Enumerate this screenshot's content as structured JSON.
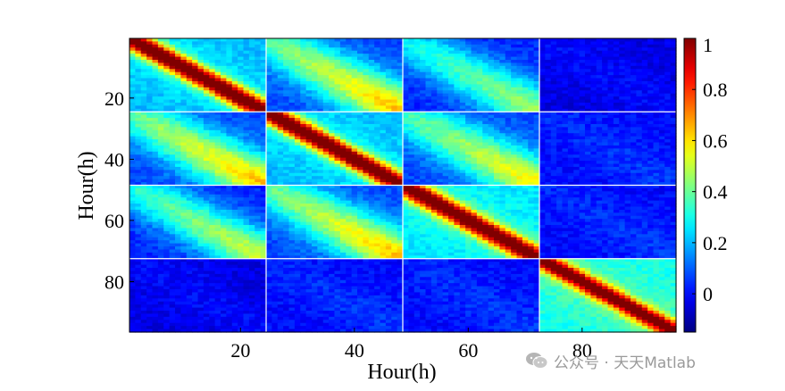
{
  "chart_data": {
    "type": "heatmap",
    "title": "",
    "xlabel": "Hour(h)",
    "ylabel": "Hour(h)",
    "x_range": [
      1,
      96
    ],
    "y_range": [
      1,
      96
    ],
    "x_ticks": [
      20,
      40,
      60,
      80
    ],
    "y_ticks": [
      20,
      40,
      60,
      80
    ],
    "block_size_hours": 24,
    "colormap": "jet",
    "colorbar": {
      "min": -0.15,
      "max": 1.0,
      "ticks": [
        0,
        0.2,
        0.4,
        0.6,
        0.8,
        1
      ],
      "tick_labels": [
        "0",
        "0.2",
        "0.4",
        "0.6",
        "0.8",
        "1"
      ]
    },
    "block_values": [
      {
        "row_block": 1,
        "col_block": 1,
        "diagonal": 1.0,
        "off_diagonal_peak": 0.2
      },
      {
        "row_block": 1,
        "col_block": 2,
        "diagonal": 0.55,
        "off_diagonal_peak": 0.1
      },
      {
        "row_block": 1,
        "col_block": 3,
        "diagonal": 0.4,
        "off_diagonal_peak": 0.05
      },
      {
        "row_block": 1,
        "col_block": 4,
        "diagonal": 0.0,
        "off_diagonal_peak": -0.05
      },
      {
        "row_block": 2,
        "col_block": 1,
        "diagonal": 0.55,
        "off_diagonal_peak": 0.1
      },
      {
        "row_block": 2,
        "col_block": 2,
        "diagonal": 1.0,
        "off_diagonal_peak": 0.2
      },
      {
        "row_block": 2,
        "col_block": 3,
        "diagonal": 0.5,
        "off_diagonal_peak": 0.1
      },
      {
        "row_block": 2,
        "col_block": 4,
        "diagonal": 0.05,
        "off_diagonal_peak": 0.0
      },
      {
        "row_block": 3,
        "col_block": 1,
        "diagonal": 0.45,
        "off_diagonal_peak": 0.05
      },
      {
        "row_block": 3,
        "col_block": 2,
        "diagonal": 0.55,
        "off_diagonal_peak": 0.1
      },
      {
        "row_block": 3,
        "col_block": 3,
        "diagonal": 1.0,
        "off_diagonal_peak": 0.25
      },
      {
        "row_block": 3,
        "col_block": 4,
        "diagonal": 0.05,
        "off_diagonal_peak": 0.0
      },
      {
        "row_block": 4,
        "col_block": 1,
        "diagonal": 0.0,
        "off_diagonal_peak": -0.05
      },
      {
        "row_block": 4,
        "col_block": 2,
        "diagonal": 0.05,
        "off_diagonal_peak": 0.0
      },
      {
        "row_block": 4,
        "col_block": 3,
        "diagonal": 0.05,
        "off_diagonal_peak": 0.0
      },
      {
        "row_block": 4,
        "col_block": 4,
        "diagonal": 1.0,
        "off_diagonal_peak": 0.3
      }
    ]
  },
  "watermark": {
    "text": "公众号 · 天天Matlab",
    "icon": "wechat-icon"
  }
}
